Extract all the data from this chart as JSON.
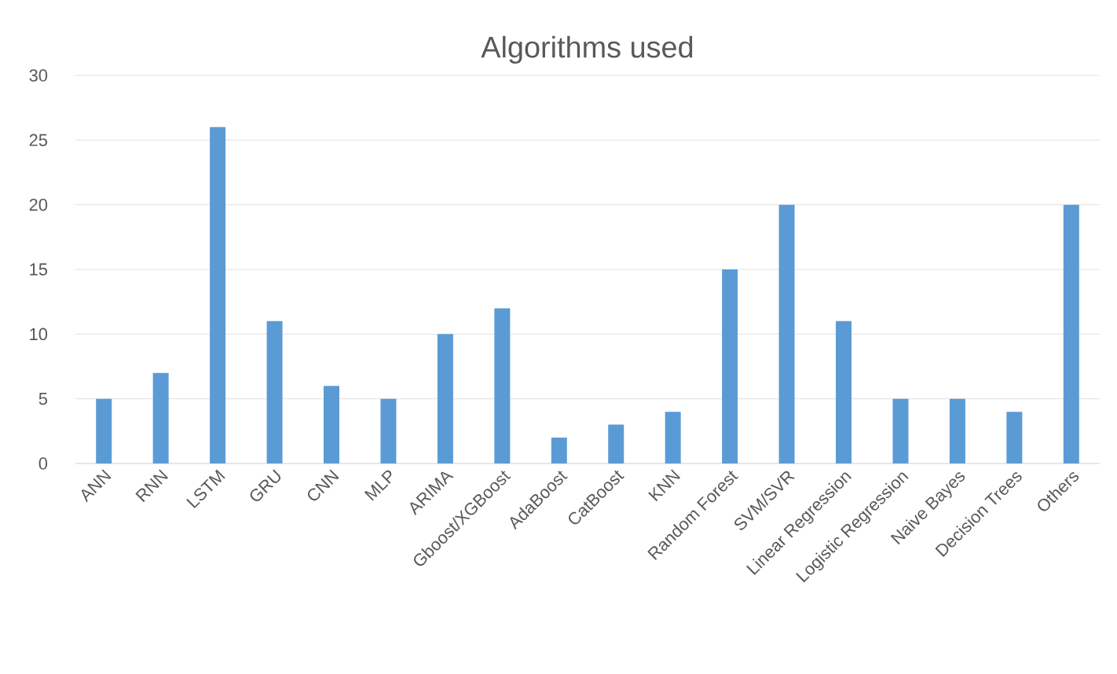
{
  "chart_data": {
    "type": "bar",
    "title": "Algorithms used",
    "categories": [
      "ANN",
      "RNN",
      "LSTM",
      "GRU",
      "CNN",
      "MLP",
      "ARIMA",
      "Gboost/XGBoost",
      "AdaBoost",
      "CatBoost",
      "KNN",
      "Random Forest",
      "SVM/SVR",
      "Linear Regression",
      "Logistic Regression",
      "Naive Bayes",
      "Decision Trees",
      "Others"
    ],
    "values": [
      5,
      7,
      26,
      11,
      6,
      5,
      10,
      12,
      2,
      3,
      4,
      15,
      20,
      11,
      5,
      5,
      4,
      20
    ],
    "color": "#5b9bd5",
    "ylim": [
      0,
      30
    ],
    "yticks": [
      0,
      5,
      10,
      15,
      20,
      25,
      30
    ],
    "grid": "y"
  }
}
